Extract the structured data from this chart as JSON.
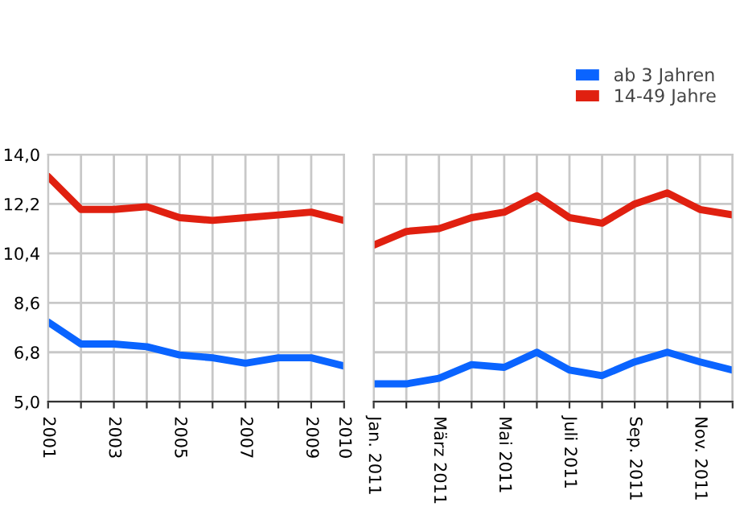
{
  "chart_data": [
    {
      "type": "line",
      "categories": [
        "2001",
        null,
        "2003",
        null,
        "2005",
        null,
        "2007",
        null,
        "2009",
        "2010"
      ],
      "series": [
        {
          "color": "#0a64ff",
          "values": [
            7.9,
            7.1,
            7.1,
            7.0,
            6.7,
            6.6,
            6.4,
            6.6,
            6.6,
            6.3
          ]
        },
        {
          "color": "#e02010",
          "values": [
            13.2,
            12.0,
            12.0,
            12.1,
            11.7,
            11.6,
            11.7,
            11.8,
            11.9,
            11.6
          ]
        }
      ],
      "ylim": [
        5.0,
        14.0
      ],
      "yticks": [
        {
          "value": 5.0,
          "label": "5,0"
        },
        {
          "value": 6.8,
          "label": "6,8"
        },
        {
          "value": 8.6,
          "label": "8,6"
        },
        {
          "value": 10.4,
          "label": "10,4"
        },
        {
          "value": 12.2,
          "label": "12,2"
        },
        {
          "value": 14.0,
          "label": "14,0"
        }
      ],
      "grid": true,
      "legend": false,
      "marker": "none",
      "line_style": "solid"
    },
    {
      "type": "line",
      "categories": [
        "Jan. 2011",
        null,
        "März 2011",
        null,
        "Mai 2011",
        null,
        "Juli 2011",
        null,
        "Sep. 2011",
        null,
        "Nov. 2011",
        null
      ],
      "series": [
        {
          "name": "ab 3 Jahren",
          "color": "#0a64ff",
          "values": [
            5.65,
            5.65,
            5.85,
            6.35,
            6.25,
            6.8,
            6.15,
            5.95,
            6.45,
            6.8,
            6.45,
            6.15
          ]
        },
        {
          "name": "14-49 Jahre",
          "color": "#e02010",
          "values": [
            10.7,
            11.2,
            11.3,
            11.7,
            11.9,
            12.5,
            11.7,
            11.5,
            12.2,
            12.6,
            12.0,
            11.8
          ]
        }
      ],
      "ylim": [
        5.0,
        14.0
      ],
      "yticks": [
        {
          "value": 5.0,
          "label": null
        },
        {
          "value": 6.8,
          "label": null
        },
        {
          "value": 8.6,
          "label": null
        },
        {
          "value": 10.4,
          "label": null
        },
        {
          "value": 12.2,
          "label": null
        },
        {
          "value": 14.0,
          "label": null
        }
      ],
      "tick_labels": "x",
      "grid": true,
      "legend": "top right",
      "marker": "none",
      "line_style": "solid"
    }
  ]
}
